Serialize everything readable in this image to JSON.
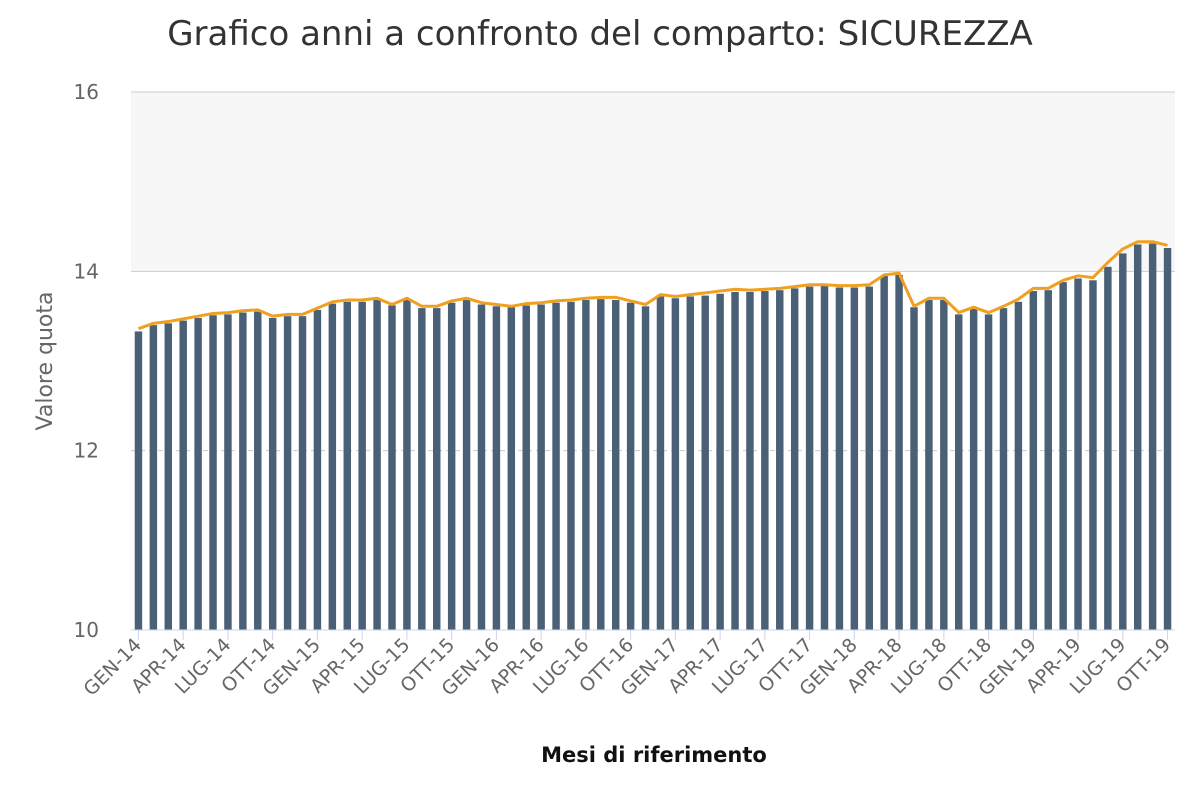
{
  "chart_data": {
    "type": "bar",
    "title": "Grafico anni a confronto del comparto: SICUREZZA",
    "xlabel": "Mesi di riferimento",
    "ylabel": "Valore quota",
    "ylim": [
      10,
      16
    ],
    "yticks": [
      10,
      12,
      14,
      16
    ],
    "grid": true,
    "x_tick_labels": [
      "GEN-14",
      "APR-14",
      "LUG-14",
      "OTT-14",
      "GEN-15",
      "APR-15",
      "LUG-15",
      "OTT-15",
      "GEN-16",
      "APR-16",
      "LUG-16",
      "OTT-16",
      "GEN-17",
      "APR-17",
      "LUG-17",
      "OTT-17",
      "GEN-18",
      "APR-18",
      "LUG-18",
      "OTT-18",
      "GEN-19",
      "APR-19",
      "LUG-19",
      "OTT-19"
    ],
    "categories": [
      "GEN-14",
      "FEB-14",
      "MAR-14",
      "APR-14",
      "MAG-14",
      "GIU-14",
      "LUG-14",
      "AGO-14",
      "SET-14",
      "OTT-14",
      "NOV-14",
      "DIC-14",
      "GEN-15",
      "FEB-15",
      "MAR-15",
      "APR-15",
      "MAG-15",
      "GIU-15",
      "LUG-15",
      "AGO-15",
      "SET-15",
      "OTT-15",
      "NOV-15",
      "DIC-15",
      "GEN-16",
      "FEB-16",
      "MAR-16",
      "APR-16",
      "MAG-16",
      "GIU-16",
      "LUG-16",
      "AGO-16",
      "SET-16",
      "OTT-16",
      "NOV-16",
      "DIC-16",
      "GEN-17",
      "FEB-17",
      "MAR-17",
      "APR-17",
      "MAG-17",
      "GIU-17",
      "LUG-17",
      "AGO-17",
      "SET-17",
      "OTT-17",
      "NOV-17",
      "DIC-17",
      "GEN-18",
      "FEB-18",
      "MAR-18",
      "APR-18",
      "MAG-18",
      "GIU-18",
      "LUG-18",
      "AGO-18",
      "SET-18",
      "OTT-18",
      "NOV-18",
      "DIC-18",
      "GEN-19",
      "FEB-19",
      "MAR-19",
      "APR-19",
      "MAG-19",
      "GIU-19",
      "LUG-19",
      "AGO-19",
      "SET-19",
      "OTT-19"
    ],
    "series": [
      {
        "type": "bar",
        "color": "#4a6076",
        "values": [
          13.33,
          13.4,
          13.42,
          13.45,
          13.48,
          13.51,
          13.52,
          13.54,
          13.55,
          13.48,
          13.5,
          13.5,
          13.57,
          13.64,
          13.66,
          13.66,
          13.68,
          13.62,
          13.68,
          13.59,
          13.59,
          13.65,
          13.68,
          13.63,
          13.61,
          13.6,
          13.62,
          13.63,
          13.65,
          13.66,
          13.68,
          13.69,
          13.68,
          13.65,
          13.61,
          13.72,
          13.7,
          13.72,
          13.73,
          13.75,
          13.77,
          13.77,
          13.78,
          13.79,
          13.81,
          13.83,
          13.84,
          13.82,
          13.82,
          13.83,
          13.95,
          13.96,
          13.6,
          13.68,
          13.68,
          13.52,
          13.58,
          13.52,
          13.59,
          13.66,
          13.78,
          13.79,
          13.88,
          13.92,
          13.9,
          14.05,
          14.2,
          14.3,
          14.31,
          14.26
        ]
      },
      {
        "type": "line",
        "color": "#f0a020",
        "values": [
          13.36,
          13.42,
          13.44,
          13.47,
          13.5,
          13.53,
          13.54,
          13.56,
          13.57,
          13.5,
          13.52,
          13.52,
          13.59,
          13.66,
          13.68,
          13.68,
          13.7,
          13.63,
          13.7,
          13.61,
          13.61,
          13.67,
          13.7,
          13.65,
          13.63,
          13.61,
          13.64,
          13.65,
          13.67,
          13.68,
          13.7,
          13.71,
          13.71,
          13.67,
          13.63,
          13.74,
          13.72,
          13.74,
          13.76,
          13.78,
          13.8,
          13.79,
          13.8,
          13.81,
          13.83,
          13.85,
          13.85,
          13.84,
          13.84,
          13.85,
          13.96,
          13.98,
          13.61,
          13.7,
          13.7,
          13.54,
          13.6,
          13.54,
          13.61,
          13.69,
          13.81,
          13.81,
          13.9,
          13.95,
          13.93,
          14.1,
          14.25,
          14.33,
          14.33,
          14.29
        ]
      }
    ]
  }
}
